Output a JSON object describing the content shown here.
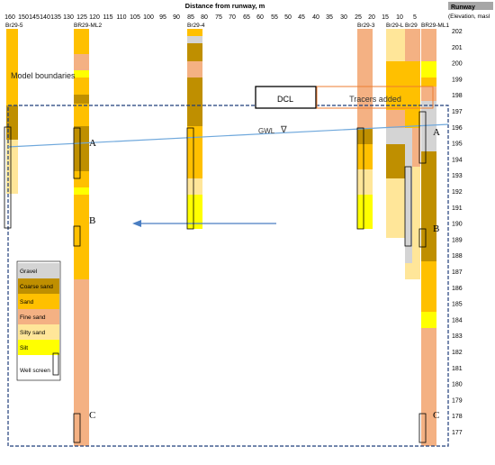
{
  "axis": {
    "x_title": "Distance from runway, m",
    "x_ticks": [
      160,
      150,
      145,
      140,
      135,
      130,
      125,
      120,
      115,
      110,
      105,
      100,
      95,
      90,
      85,
      80,
      75,
      70,
      65,
      60,
      55,
      50,
      45,
      40,
      35,
      30,
      25,
      20,
      15,
      10,
      5
    ],
    "y_title_line1": "Runway",
    "y_title_line2": "(Elevation, masl",
    "y_ticks": [
      202,
      201,
      200,
      199,
      198,
      197,
      196,
      195,
      194,
      193,
      192,
      191,
      190,
      189,
      188,
      187,
      186,
      185,
      184,
      183,
      182,
      181,
      180,
      179,
      178,
      177
    ]
  },
  "boreholes": [
    {
      "id": "br29-5",
      "label": "Br29-5"
    },
    {
      "id": "br29-ml2",
      "label": "BR29-ML2"
    },
    {
      "id": "br29-4",
      "label": "Br29-4"
    },
    {
      "id": "br29-3",
      "label": "Br29-3"
    },
    {
      "id": "br29-l",
      "label": "Br29-L"
    },
    {
      "id": "br29",
      "label": "Br29"
    },
    {
      "id": "br29-ml1",
      "label": "BR29-ML1"
    }
  ],
  "annotations": {
    "model_boundaries": "Model boundaries",
    "dcl": "DCL",
    "tracers_added": "Tracers added",
    "gwl": "GWL",
    "gwl_symbol": "∇"
  },
  "markers": [
    {
      "id": "a-left",
      "text": "A"
    },
    {
      "id": "b-left",
      "text": "B"
    },
    {
      "id": "c-left",
      "text": "C"
    },
    {
      "id": "a-right",
      "text": "A"
    },
    {
      "id": "b-right",
      "text": "B"
    },
    {
      "id": "c-right",
      "text": "C"
    }
  ],
  "legend": {
    "items": [
      {
        "label": "Gravel",
        "color": "#d4d4d4"
      },
      {
        "label": "Coarse sand",
        "color": "#bf8f00"
      },
      {
        "label": "Sand",
        "color": "#ffc000"
      },
      {
        "label": "Fine sand",
        "color": "#f4b183"
      },
      {
        "label": "Silty sand",
        "color": "#ffe699"
      },
      {
        "label": "Silt",
        "color": "#ffff00"
      }
    ],
    "well_screen_label": "Well screen"
  },
  "colors": {
    "frame": "#1f3d7a",
    "gwl": "#6fa8dc",
    "arrow": "#4a7ec2",
    "tracer_box": "#ed7d31"
  }
}
